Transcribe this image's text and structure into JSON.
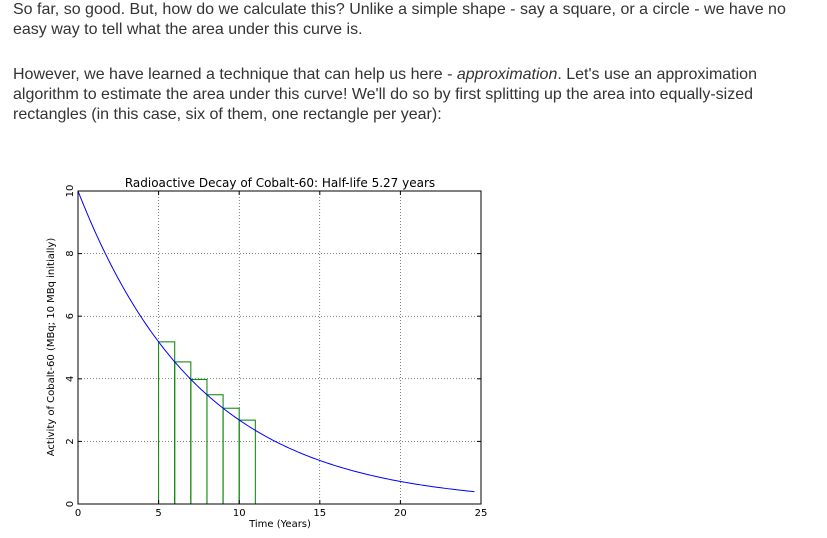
{
  "prose": {
    "p1": "So far, so good. But, how do we calculate this? Unlike a simple shape - say a square, or a circle - we have no easy way to tell what the area under this curve is.",
    "p2_before": "However, we have learned a technique that can help us here - ",
    "p2_em": "approximation",
    "p2_after": ". Let's use an approximation algorithm to estimate the area under this curve! We'll do so by first splitting up the area into equally-sized rectangles (in this case, six of them, one rectangle per year):"
  },
  "chart_data": {
    "type": "line",
    "title": "Radioactive Decay of Cobalt-60: Half-life 5.27 years",
    "xlabel": "Time (Years)",
    "ylabel": "Activity of Cobalt-60 (MBq; 10 MBq initially)",
    "xlim": [
      0,
      25
    ],
    "ylim": [
      0,
      10
    ],
    "x_ticks": [
      0,
      5,
      10,
      15,
      20,
      25
    ],
    "y_ticks": [
      0,
      2,
      4,
      6,
      8,
      10
    ],
    "grid": true,
    "series": [
      {
        "name": "",
        "color": "#0000ff",
        "half_life": 5.27,
        "initial": 10,
        "x": [
          0,
          1,
          2,
          3,
          4,
          5,
          6,
          7,
          8,
          9,
          10,
          11,
          12,
          13,
          14,
          15,
          16,
          17,
          18,
          19,
          20,
          21,
          22,
          23,
          24
        ],
        "y": [
          10,
          8.77,
          7.69,
          6.74,
          5.91,
          5.18,
          4.54,
          3.98,
          3.49,
          3.06,
          2.68,
          2.35,
          2.06,
          1.81,
          1.59,
          1.39,
          1.22,
          1.07,
          0.94,
          0.82,
          0.72,
          0.63,
          0.55,
          0.49,
          0.43
        ]
      }
    ],
    "rectangles": {
      "color": "#008000",
      "x_start": [
        5,
        6,
        7,
        8,
        9,
        10
      ],
      "width": 1,
      "height": [
        5.18,
        4.54,
        3.98,
        3.49,
        3.06,
        2.68
      ]
    }
  }
}
